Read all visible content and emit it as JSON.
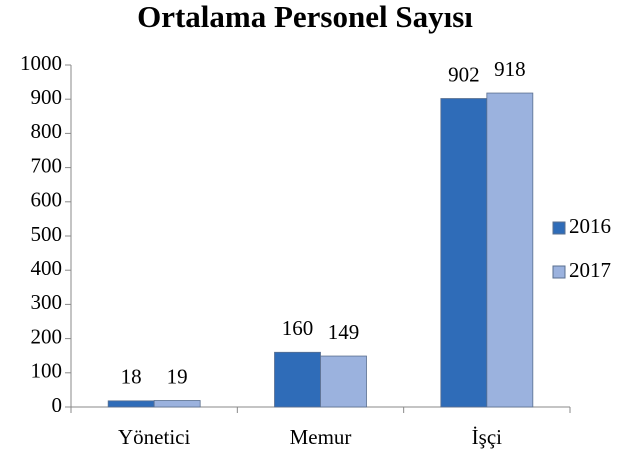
{
  "chart_data": {
    "type": "bar",
    "title": "Ortalama Personel Sayısı",
    "categories": [
      "Yönetici",
      "Memur",
      "İşçi"
    ],
    "series": [
      {
        "name": "2016",
        "color": "#2f6cb8",
        "values": [
          18,
          160,
          902
        ]
      },
      {
        "name": "2017",
        "color": "#9bb2de",
        "values": [
          19,
          149,
          918
        ]
      }
    ],
    "ylim": [
      0,
      1000
    ],
    "yticks": [
      0,
      100,
      200,
      300,
      400,
      500,
      600,
      700,
      800,
      900,
      1000
    ],
    "legend": "right"
  }
}
